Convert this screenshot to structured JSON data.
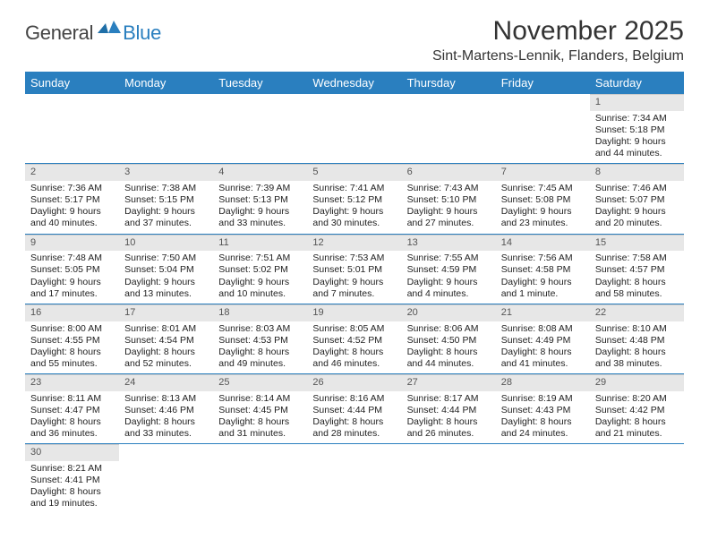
{
  "logo": {
    "main": "General",
    "blue": "Blue"
  },
  "title": "November 2025",
  "location": "Sint-Martens-Lennik, Flanders, Belgium",
  "colors": {
    "header_bg": "#2a7fbf",
    "header_text": "#ffffff",
    "daynum_bg": "#e7e7e7",
    "row_border": "#2a7fbf",
    "text": "#222222"
  },
  "fonts": {
    "title_size": 30,
    "location_size": 16,
    "th_size": 13,
    "cell_size": 10.5
  },
  "day_headers": [
    "Sunday",
    "Monday",
    "Tuesday",
    "Wednesday",
    "Thursday",
    "Friday",
    "Saturday"
  ],
  "weeks": [
    [
      null,
      null,
      null,
      null,
      null,
      null,
      {
        "n": "1",
        "sunrise": "Sunrise: 7:34 AM",
        "sunset": "Sunset: 5:18 PM",
        "day1": "Daylight: 9 hours",
        "day2": "and 44 minutes."
      }
    ],
    [
      {
        "n": "2",
        "sunrise": "Sunrise: 7:36 AM",
        "sunset": "Sunset: 5:17 PM",
        "day1": "Daylight: 9 hours",
        "day2": "and 40 minutes."
      },
      {
        "n": "3",
        "sunrise": "Sunrise: 7:38 AM",
        "sunset": "Sunset: 5:15 PM",
        "day1": "Daylight: 9 hours",
        "day2": "and 37 minutes."
      },
      {
        "n": "4",
        "sunrise": "Sunrise: 7:39 AM",
        "sunset": "Sunset: 5:13 PM",
        "day1": "Daylight: 9 hours",
        "day2": "and 33 minutes."
      },
      {
        "n": "5",
        "sunrise": "Sunrise: 7:41 AM",
        "sunset": "Sunset: 5:12 PM",
        "day1": "Daylight: 9 hours",
        "day2": "and 30 minutes."
      },
      {
        "n": "6",
        "sunrise": "Sunrise: 7:43 AM",
        "sunset": "Sunset: 5:10 PM",
        "day1": "Daylight: 9 hours",
        "day2": "and 27 minutes."
      },
      {
        "n": "7",
        "sunrise": "Sunrise: 7:45 AM",
        "sunset": "Sunset: 5:08 PM",
        "day1": "Daylight: 9 hours",
        "day2": "and 23 minutes."
      },
      {
        "n": "8",
        "sunrise": "Sunrise: 7:46 AM",
        "sunset": "Sunset: 5:07 PM",
        "day1": "Daylight: 9 hours",
        "day2": "and 20 minutes."
      }
    ],
    [
      {
        "n": "9",
        "sunrise": "Sunrise: 7:48 AM",
        "sunset": "Sunset: 5:05 PM",
        "day1": "Daylight: 9 hours",
        "day2": "and 17 minutes."
      },
      {
        "n": "10",
        "sunrise": "Sunrise: 7:50 AM",
        "sunset": "Sunset: 5:04 PM",
        "day1": "Daylight: 9 hours",
        "day2": "and 13 minutes."
      },
      {
        "n": "11",
        "sunrise": "Sunrise: 7:51 AM",
        "sunset": "Sunset: 5:02 PM",
        "day1": "Daylight: 9 hours",
        "day2": "and 10 minutes."
      },
      {
        "n": "12",
        "sunrise": "Sunrise: 7:53 AM",
        "sunset": "Sunset: 5:01 PM",
        "day1": "Daylight: 9 hours",
        "day2": "and 7 minutes."
      },
      {
        "n": "13",
        "sunrise": "Sunrise: 7:55 AM",
        "sunset": "Sunset: 4:59 PM",
        "day1": "Daylight: 9 hours",
        "day2": "and 4 minutes."
      },
      {
        "n": "14",
        "sunrise": "Sunrise: 7:56 AM",
        "sunset": "Sunset: 4:58 PM",
        "day1": "Daylight: 9 hours",
        "day2": "and 1 minute."
      },
      {
        "n": "15",
        "sunrise": "Sunrise: 7:58 AM",
        "sunset": "Sunset: 4:57 PM",
        "day1": "Daylight: 8 hours",
        "day2": "and 58 minutes."
      }
    ],
    [
      {
        "n": "16",
        "sunrise": "Sunrise: 8:00 AM",
        "sunset": "Sunset: 4:55 PM",
        "day1": "Daylight: 8 hours",
        "day2": "and 55 minutes."
      },
      {
        "n": "17",
        "sunrise": "Sunrise: 8:01 AM",
        "sunset": "Sunset: 4:54 PM",
        "day1": "Daylight: 8 hours",
        "day2": "and 52 minutes."
      },
      {
        "n": "18",
        "sunrise": "Sunrise: 8:03 AM",
        "sunset": "Sunset: 4:53 PM",
        "day1": "Daylight: 8 hours",
        "day2": "and 49 minutes."
      },
      {
        "n": "19",
        "sunrise": "Sunrise: 8:05 AM",
        "sunset": "Sunset: 4:52 PM",
        "day1": "Daylight: 8 hours",
        "day2": "and 46 minutes."
      },
      {
        "n": "20",
        "sunrise": "Sunrise: 8:06 AM",
        "sunset": "Sunset: 4:50 PM",
        "day1": "Daylight: 8 hours",
        "day2": "and 44 minutes."
      },
      {
        "n": "21",
        "sunrise": "Sunrise: 8:08 AM",
        "sunset": "Sunset: 4:49 PM",
        "day1": "Daylight: 8 hours",
        "day2": "and 41 minutes."
      },
      {
        "n": "22",
        "sunrise": "Sunrise: 8:10 AM",
        "sunset": "Sunset: 4:48 PM",
        "day1": "Daylight: 8 hours",
        "day2": "and 38 minutes."
      }
    ],
    [
      {
        "n": "23",
        "sunrise": "Sunrise: 8:11 AM",
        "sunset": "Sunset: 4:47 PM",
        "day1": "Daylight: 8 hours",
        "day2": "and 36 minutes."
      },
      {
        "n": "24",
        "sunrise": "Sunrise: 8:13 AM",
        "sunset": "Sunset: 4:46 PM",
        "day1": "Daylight: 8 hours",
        "day2": "and 33 minutes."
      },
      {
        "n": "25",
        "sunrise": "Sunrise: 8:14 AM",
        "sunset": "Sunset: 4:45 PM",
        "day1": "Daylight: 8 hours",
        "day2": "and 31 minutes."
      },
      {
        "n": "26",
        "sunrise": "Sunrise: 8:16 AM",
        "sunset": "Sunset: 4:44 PM",
        "day1": "Daylight: 8 hours",
        "day2": "and 28 minutes."
      },
      {
        "n": "27",
        "sunrise": "Sunrise: 8:17 AM",
        "sunset": "Sunset: 4:44 PM",
        "day1": "Daylight: 8 hours",
        "day2": "and 26 minutes."
      },
      {
        "n": "28",
        "sunrise": "Sunrise: 8:19 AM",
        "sunset": "Sunset: 4:43 PM",
        "day1": "Daylight: 8 hours",
        "day2": "and 24 minutes."
      },
      {
        "n": "29",
        "sunrise": "Sunrise: 8:20 AM",
        "sunset": "Sunset: 4:42 PM",
        "day1": "Daylight: 8 hours",
        "day2": "and 21 minutes."
      }
    ],
    [
      {
        "n": "30",
        "sunrise": "Sunrise: 8:21 AM",
        "sunset": "Sunset: 4:41 PM",
        "day1": "Daylight: 8 hours",
        "day2": "and 19 minutes."
      },
      null,
      null,
      null,
      null,
      null,
      null
    ]
  ]
}
